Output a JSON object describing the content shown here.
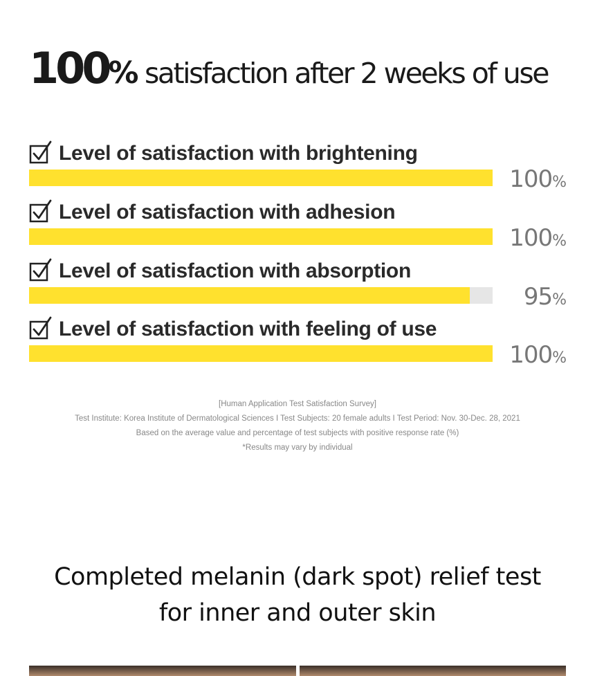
{
  "headline": {
    "big": "100",
    "pct": "%",
    "rest": " satisfaction after 2 weeks of use"
  },
  "chart_data": {
    "type": "bar",
    "orientation": "horizontal",
    "categories": [
      "Level of satisfaction with brightening",
      "Level of satisfaction with adhesion",
      "Level of satisfaction with absorption",
      "Level of satisfaction with feeling of use"
    ],
    "values": [
      100,
      100,
      95,
      100
    ],
    "unit": "%",
    "xlim": [
      0,
      100
    ],
    "bar_color": "#ffe12e",
    "track_color": "#e6e6e6",
    "grid": false
  },
  "notes": [
    "[Human Application Test Satisfaction Survey]",
    "Test Institute: Korea Institute of Dermatological Sciences  I  Test Subjects: 20 female adults  I  Test Period: Nov. 30-Dec. 28, 2021",
    "Based on the average value and percentage of test subjects with positive response rate (%)",
    "*Results may vary by individual"
  ],
  "sub_heading": {
    "line1": "Completed melanin (dark spot) relief test",
    "line2": "for inner and outer skin"
  },
  "icons": {
    "check": "checkbox-check-icon"
  }
}
